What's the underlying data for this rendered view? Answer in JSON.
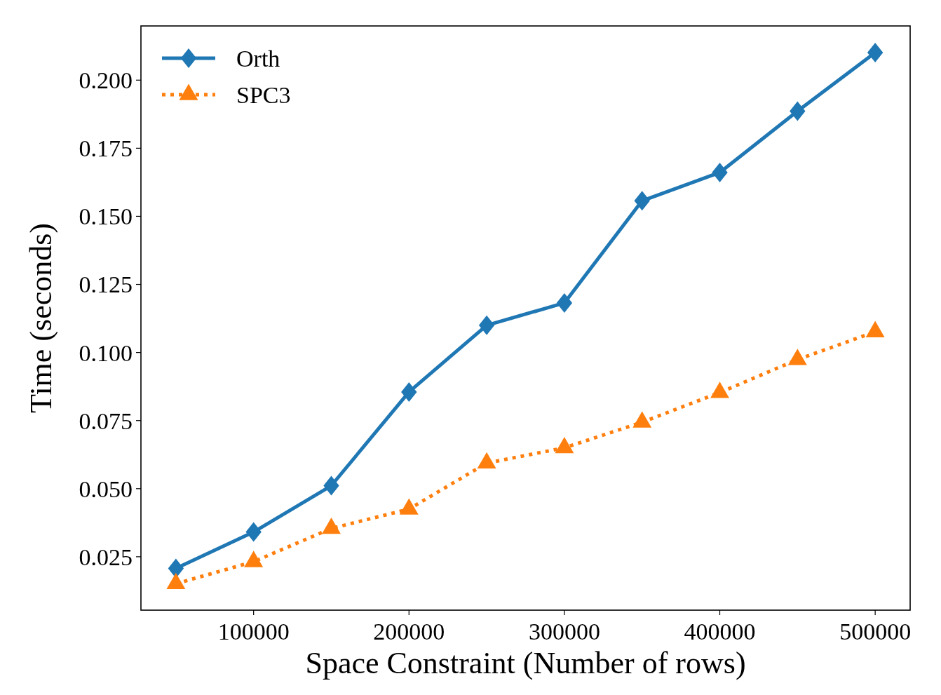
{
  "chart_data": {
    "type": "line",
    "xlabel": "Space Constraint (Number of rows)",
    "ylabel": "Time (seconds)",
    "x": [
      50000,
      100000,
      150000,
      200000,
      250000,
      300000,
      350000,
      400000,
      450000,
      500000
    ],
    "series": [
      {
        "name": "Orth",
        "color": "#1f77b4",
        "marker": "diamond",
        "line_style": "solid",
        "values": [
          0.0207,
          0.0341,
          0.0511,
          0.0855,
          0.11,
          0.1182,
          0.1557,
          0.1661,
          0.1886,
          0.2101
        ]
      },
      {
        "name": "SPC3",
        "color": "#ff7f0e",
        "marker": "triangle",
        "line_style": "dotted",
        "values": [
          0.0151,
          0.0232,
          0.0354,
          0.0425,
          0.0594,
          0.065,
          0.0744,
          0.0853,
          0.0974,
          0.1076
        ]
      }
    ],
    "xlim": [
      27500,
      522500
    ],
    "xticks": [
      100000,
      200000,
      300000,
      400000,
      500000
    ],
    "ylim": [
      0.0054,
      0.2199
    ],
    "yticks": [
      {
        "value": 0.025,
        "label": "0.025"
      },
      {
        "value": 0.05,
        "label": "0.050"
      },
      {
        "value": 0.075,
        "label": "0.075"
      },
      {
        "value": 0.1,
        "label": "0.100"
      },
      {
        "value": 0.125,
        "label": "0.125"
      },
      {
        "value": 0.15,
        "label": "0.150"
      },
      {
        "value": 0.175,
        "label": "0.175"
      },
      {
        "value": 0.2,
        "label": "0.200"
      }
    ],
    "grid": false,
    "legend": "top left"
  }
}
